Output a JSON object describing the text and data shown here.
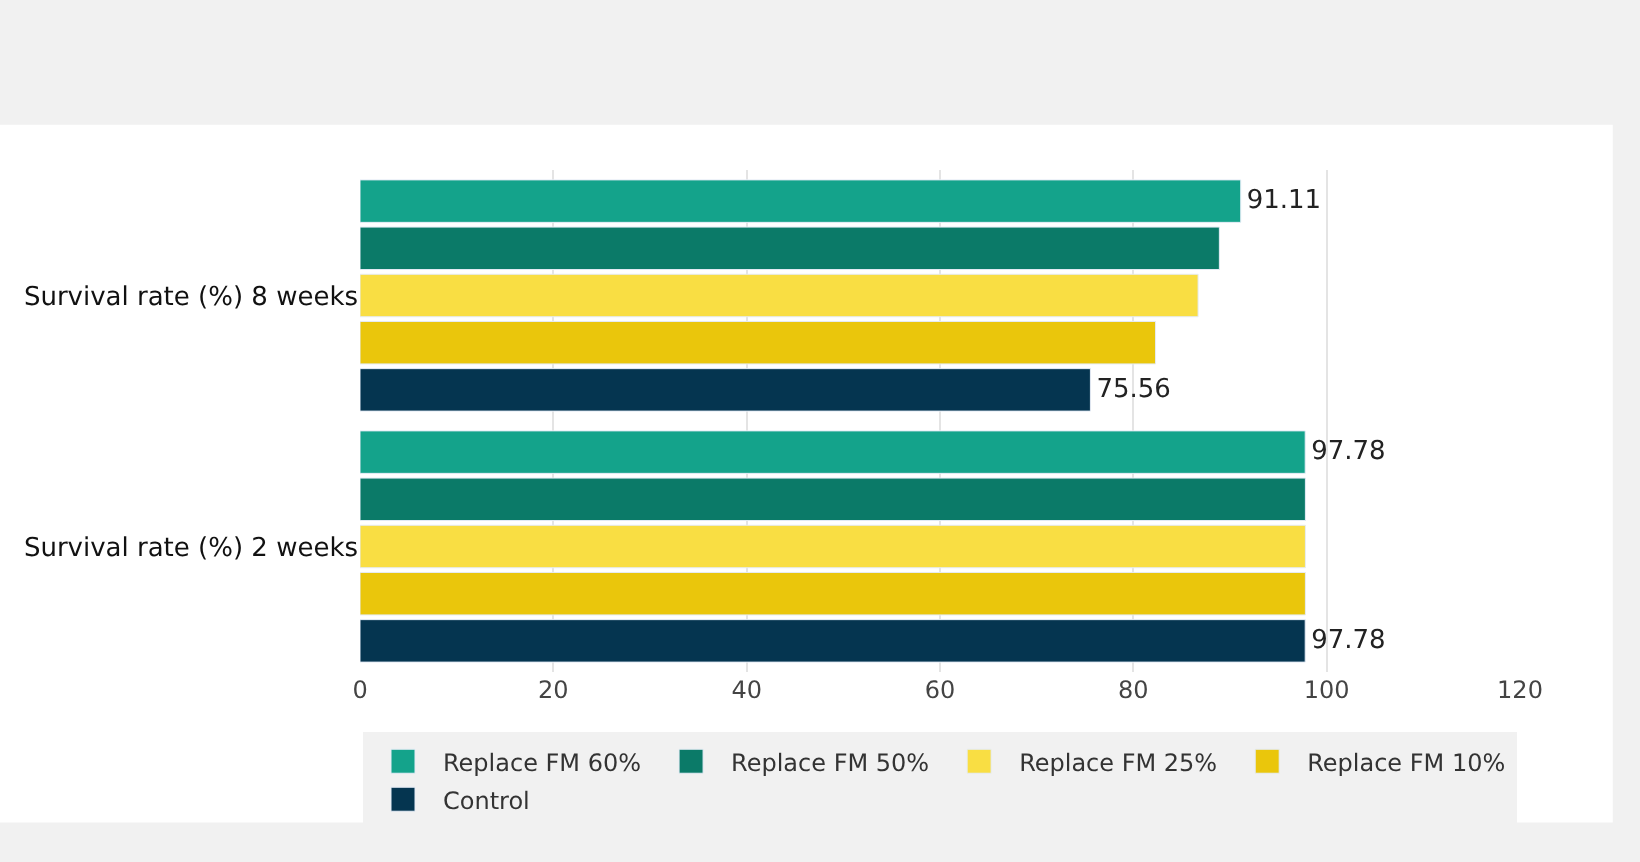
{
  "chart_data": {
    "type": "bar",
    "orientation": "horizontal",
    "categories": [
      "Survival rate (%) 8 weeks",
      "Survival rate (%) 2 weeks"
    ],
    "series": [
      {
        "name": "Replace FM 60%",
        "color": "#14a38b",
        "values": [
          91.11,
          97.78
        ],
        "value_labels": [
          "91.11",
          "97.78"
        ]
      },
      {
        "name": "Replace FM 50%",
        "color": "#0b7a68",
        "values": [
          88.9,
          97.8
        ],
        "value_labels": [
          null,
          null
        ]
      },
      {
        "name": "Replace FM 25%",
        "color": "#f9de43",
        "values": [
          86.7,
          97.8
        ],
        "value_labels": [
          null,
          null
        ]
      },
      {
        "name": "Replace FM 10%",
        "color": "#eac60c",
        "values": [
          82.3,
          97.8
        ],
        "value_labels": [
          null,
          null
        ]
      },
      {
        "name": "Control",
        "color": "#053550",
        "values": [
          75.56,
          97.78
        ],
        "value_labels": [
          "75.56",
          "97.78"
        ]
      }
    ],
    "xlim": [
      0,
      120
    ],
    "xticks": [
      0,
      20,
      40,
      60,
      80,
      100,
      120
    ],
    "grid": "x",
    "legend": "bottom"
  }
}
